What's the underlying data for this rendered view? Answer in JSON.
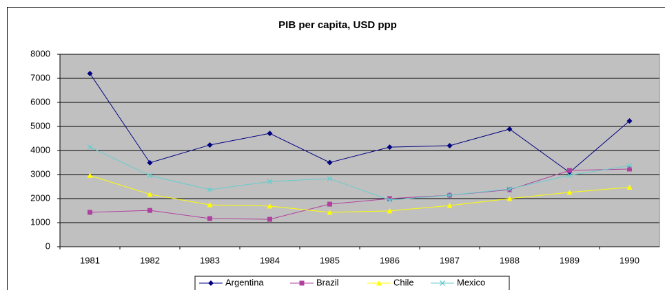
{
  "chart_data": {
    "type": "line",
    "title": "PIB per capita, USD ppp",
    "categories": [
      "1981",
      "1982",
      "1983",
      "1984",
      "1985",
      "1986",
      "1987",
      "1988",
      "1989",
      "1990"
    ],
    "series": [
      {
        "name": "Argentina",
        "color": "#000080",
        "marker": "diamond",
        "values": [
          7200,
          3490,
          4230,
          4710,
          3500,
          4140,
          4200,
          4890,
          3090,
          5230
        ]
      },
      {
        "name": "Brazil",
        "color": "#b040a0",
        "marker": "square",
        "values": [
          1430,
          1510,
          1170,
          1140,
          1770,
          2000,
          2140,
          2370,
          3170,
          3230
        ]
      },
      {
        "name": "Chile",
        "color": "#ffff00",
        "marker": "triangle",
        "values": [
          2960,
          2180,
          1740,
          1690,
          1430,
          1490,
          1710,
          2000,
          2260,
          2470
        ]
      },
      {
        "name": "Mexico",
        "color": "#66cccc",
        "marker": "x",
        "values": [
          4140,
          2960,
          2370,
          2710,
          2830,
          1940,
          2140,
          2400,
          2970,
          3370
        ]
      }
    ],
    "ylim": [
      0,
      8000
    ],
    "yticks": [
      0,
      1000,
      2000,
      3000,
      4000,
      5000,
      6000,
      7000,
      8000
    ],
    "grid": true,
    "legend": "bottom"
  }
}
